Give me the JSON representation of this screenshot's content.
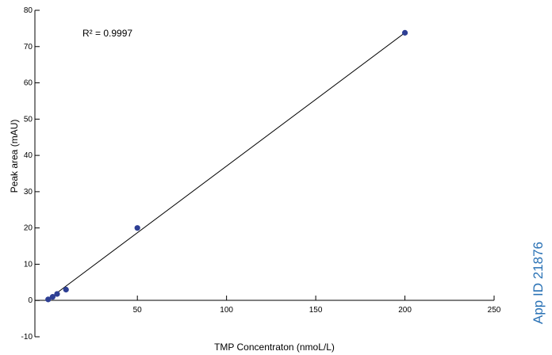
{
  "chart_data": {
    "type": "scatter",
    "xlabel": "TMP Concentraton (nmoL/L)",
    "ylabel": "Peak area (mAU)",
    "xlim": [
      -3,
      250
    ],
    "ylim": [
      -10,
      80
    ],
    "xticks": [
      50,
      100,
      150,
      200,
      250
    ],
    "yticks": [
      -10,
      0,
      10,
      20,
      30,
      40,
      50,
      60,
      70,
      80
    ],
    "grid": false,
    "series": [
      {
        "points": [
          {
            "x": 0,
            "y": 0.3
          },
          {
            "x": 2.5,
            "y": 1.0
          },
          {
            "x": 5,
            "y": 1.8
          },
          {
            "x": 10,
            "y": 3.0
          },
          {
            "x": 50,
            "y": 20.0
          },
          {
            "x": 200,
            "y": 73.8
          }
        ],
        "color": "#2e3f94"
      }
    ],
    "trendline": {
      "from": {
        "x": 0,
        "y": 0.3
      },
      "to": {
        "x": 200,
        "y": 73.8
      },
      "color": "#000000"
    },
    "annotations": [
      "R² = 0.9997"
    ],
    "side_label": {
      "text": "App ID 21876",
      "color": "#2a72b5"
    }
  }
}
